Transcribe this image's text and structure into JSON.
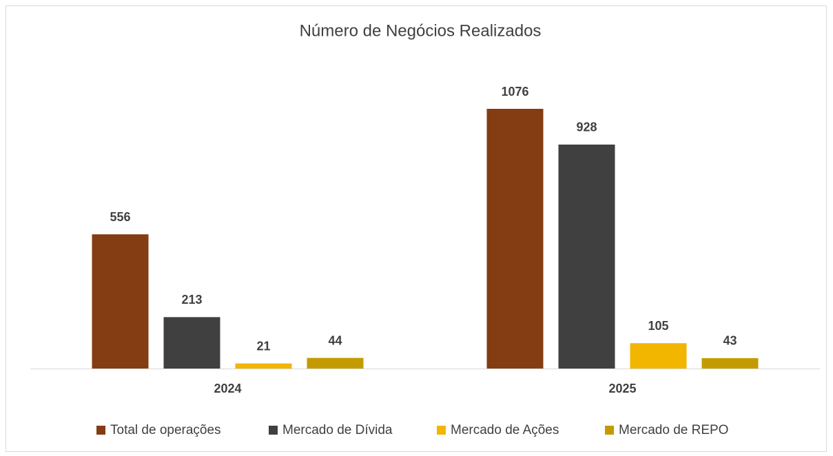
{
  "chart_data": {
    "type": "bar",
    "title": "Número de Negócios Realizados",
    "categories": [
      "2024",
      "2025"
    ],
    "series": [
      {
        "name": "Total de operações",
        "color": "#843c13",
        "values": [
          556,
          1076
        ]
      },
      {
        "name": "Mercado de Dívida",
        "color": "#404040",
        "values": [
          213,
          928
        ]
      },
      {
        "name": "Mercado de Ações",
        "color": "#f2b500",
        "values": [
          21,
          105
        ]
      },
      {
        "name": "Mercado de REPO",
        "color": "#c39b00",
        "values": [
          44,
          43
        ]
      }
    ]
  }
}
